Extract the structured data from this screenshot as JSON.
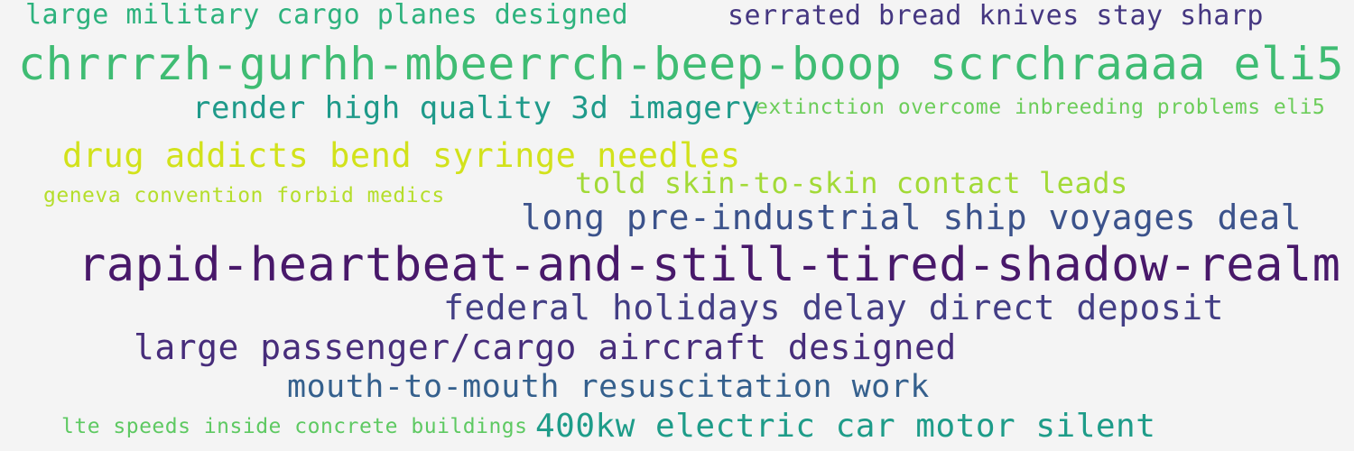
{
  "words": [
    {
      "text": "large military cargo planes designed",
      "color": "#2db27d"
    },
    {
      "text": "serrated bread knives stay sharp",
      "color": "#453781"
    },
    {
      "text": "chrrrzh-gurhh-mbeerrch-beep-boop scrchraaaa eli5",
      "color": "#3fbc73"
    },
    {
      "text": "render high quality 3d imagery",
      "color": "#1f9a8a"
    },
    {
      "text": "extinction overcome inbreeding problems eli5",
      "color": "#6ccd5a"
    },
    {
      "text": "drug addicts bend syringe needles",
      "color": "#d2e21b"
    },
    {
      "text": "told skin-to-skin contact leads",
      "color": "#a2da37"
    },
    {
      "text": "geneva convention forbid medics",
      "color": "#b5de2b"
    },
    {
      "text": "long pre-industrial ship voyages deal",
      "color": "#3b528b"
    },
    {
      "text": "rapid-heartbeat-and-still-tired-shadow-realm",
      "color": "#48186a"
    },
    {
      "text": "federal holidays delay direct deposit",
      "color": "#433e85"
    },
    {
      "text": "large passenger/cargo aircraft designed",
      "color": "#472d7b"
    },
    {
      "text": "mouth-to-mouth resuscitation work",
      "color": "#35608d"
    },
    {
      "text": "lte speeds inside concrete buildings",
      "color": "#5ec962"
    },
    {
      "text": "400kw electric car motor silent",
      "color": "#1e9c89"
    }
  ]
}
